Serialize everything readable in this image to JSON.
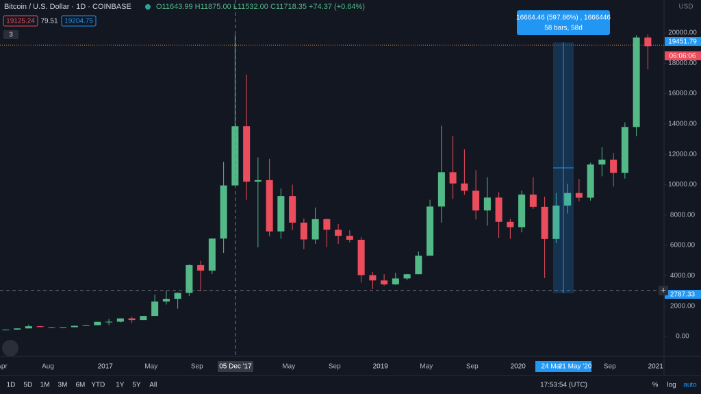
{
  "header": {
    "symbol": "Bitcoin / U.S. Dollar · 1D · COINBASE",
    "ohlc": "O11643.99 H11875.00 L11532.00 C11718.35 +74.37 (+0.64%)",
    "sell": "19125.24",
    "spread": "79.51",
    "buy": "19204.75",
    "indicators": "3"
  },
  "price_axis": {
    "currency": "USD",
    "last_price": "19451.79",
    "countdown": "06:06:06",
    "crosshair_price": "2787.33"
  },
  "crosshair": {
    "date": "05 Dec '17",
    "range_start": "24 Mar",
    "range_end": "21 May '20"
  },
  "measure": {
    "change": "16664.46 (597.86%) , 1666446",
    "span": "58 bars, 58d"
  },
  "toolbar": {
    "ranges": [
      "1D",
      "5D",
      "1M",
      "3M",
      "6M",
      "YTD",
      "1Y",
      "5Y",
      "All"
    ],
    "time": "17:53:54 (UTC)",
    "percent": "%",
    "log": "log",
    "auto": "auto"
  },
  "chart_data": {
    "type": "candlestick",
    "up_color": "#53b987",
    "down_color": "#eb4d5c",
    "grid": false,
    "categories": [
      "Apr",
      null,
      null,
      null,
      "Aug",
      null,
      null,
      null,
      null,
      "2017",
      null,
      null,
      null,
      "May",
      null,
      null,
      null,
      "Sep",
      null,
      null,
      null,
      null,
      null,
      null,
      null,
      "May",
      null,
      null,
      null,
      "Sep",
      null,
      null,
      null,
      "2019",
      null,
      null,
      null,
      "May",
      null,
      null,
      null,
      "Sep",
      null,
      null,
      null,
      "2020",
      null,
      null,
      null,
      null,
      null,
      null,
      null,
      "Sep",
      null,
      null,
      null,
      "2021"
    ],
    "open": [
      420,
      450,
      530,
      670,
      620,
      575,
      610,
      700,
      740,
      960,
      970,
      1190,
      1080,
      1350,
      2300,
      2480,
      2870,
      4700,
      4340,
      6450,
      9950,
      13850,
      10200,
      10300,
      6920,
      9250,
      7500,
      6390,
      7730,
      7030,
      6630,
      6370,
      4040,
      3690,
      3430,
      3820,
      4100,
      5320,
      8560,
      10820,
      10080,
      9600,
      8300,
      9150,
      7550,
      7200,
      9350,
      8540,
      6420,
      8620,
      9450,
      9140,
      11330,
      11650,
      10780,
      13800,
      19700,
      null
    ],
    "high": [
      470,
      540,
      780,
      700,
      630,
      620,
      720,
      750,
      970,
      1150,
      1200,
      1290,
      1350,
      2760,
      3000,
      2900,
      4750,
      4980,
      6470,
      11500,
      19890,
      17250,
      11800,
      11700,
      9750,
      10000,
      7780,
      8500,
      7770,
      7410,
      7000,
      6550,
      4250,
      4100,
      4200,
      4120,
      5600,
      9000,
      13880,
      13200,
      12330,
      10950,
      10500,
      9500,
      7750,
      9600,
      10500,
      9200,
      9450,
      10070,
      10380,
      11450,
      12470,
      12080,
      14100,
      19850,
      19900,
      null
    ],
    "low": [
      410,
      440,
      530,
      600,
      540,
      580,
      600,
      690,
      740,
      750,
      920,
      890,
      1080,
      1350,
      2100,
      1830,
      2670,
      2970,
      4110,
      5500,
      9950,
      9000,
      5870,
      6600,
      6430,
      7000,
      5750,
      6100,
      5880,
      6100,
      6200,
      3550,
      3120,
      3350,
      3390,
      3700,
      4100,
      5320,
      7500,
      9060,
      9330,
      7700,
      7300,
      6500,
      6430,
      6860,
      8400,
      3850,
      6150,
      8100,
      8900,
      8950,
      10550,
      9880,
      10400,
      13200,
      17600,
      null
    ],
    "close": [
      450,
      530,
      670,
      620,
      575,
      610,
      700,
      740,
      960,
      970,
      1190,
      1080,
      1350,
      2300,
      2480,
      2870,
      4700,
      4340,
      6450,
      9950,
      13850,
      10200,
      10300,
      6920,
      9250,
      7500,
      6390,
      7730,
      7030,
      6630,
      6370,
      4040,
      3690,
      3430,
      3820,
      4100,
      5320,
      8560,
      10820,
      10080,
      9600,
      8300,
      9150,
      7550,
      7200,
      9350,
      8540,
      6420,
      8620,
      9450,
      9140,
      11330,
      11650,
      10780,
      13800,
      19700,
      19125,
      null
    ],
    "ylim": [
      -1309,
      22167
    ],
    "yticks": [
      {
        "value": 0,
        "label": "0.00"
      },
      {
        "value": 2000,
        "label": "2000.00"
      },
      {
        "value": 4000,
        "label": "4000.00"
      },
      {
        "value": 6000,
        "label": "6000.00"
      },
      {
        "value": 8000,
        "label": "8000.00"
      },
      {
        "value": 10000,
        "label": "10000.00"
      },
      {
        "value": 12000,
        "label": "12000.00"
      },
      {
        "value": 14000,
        "label": "14000.00"
      },
      {
        "value": 16000,
        "label": "16000.00"
      },
      {
        "value": 18000,
        "label": "18000.00"
      },
      {
        "value": 20000,
        "label": "20000.00"
      }
    ]
  }
}
